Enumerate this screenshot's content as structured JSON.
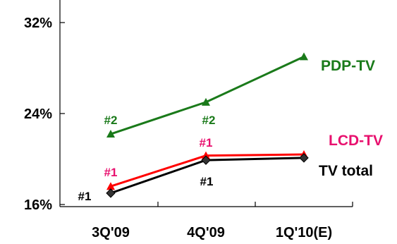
{
  "chart_data": {
    "type": "line",
    "categories": [
      "3Q'09",
      "4Q'09",
      "1Q'10(E)"
    ],
    "y_ticks": [
      "16%",
      "24%",
      "32%"
    ],
    "ylim": [
      16,
      34
    ],
    "grid": false,
    "series": [
      {
        "name": "PDP-TV",
        "color": "#1a7a1a",
        "marker": "triangle",
        "values": [
          22.2,
          25.0,
          29.0
        ],
        "rank_labels": [
          "#2",
          "#2",
          ""
        ]
      },
      {
        "name": "LCD-TV",
        "color": "#ff0000",
        "marker": "triangle",
        "values": [
          17.6,
          20.3,
          20.4
        ],
        "rank_labels": [
          "#1",
          "#1",
          ""
        ]
      },
      {
        "name": "TV total",
        "color": "#000000",
        "marker": "diamond",
        "values": [
          17.0,
          19.9,
          20.1
        ],
        "rank_labels": [
          "#1",
          "#1",
          ""
        ]
      }
    ],
    "series_label_colors": {
      "PDP-TV": "#1a7a1a",
      "LCD-TV": "#e8106e",
      "TV total": "#000000"
    },
    "rank_label_colors": {
      "PDP-TV": "#1a7a1a",
      "LCD-TV": "#e8106e",
      "TV total": "#000000"
    }
  }
}
